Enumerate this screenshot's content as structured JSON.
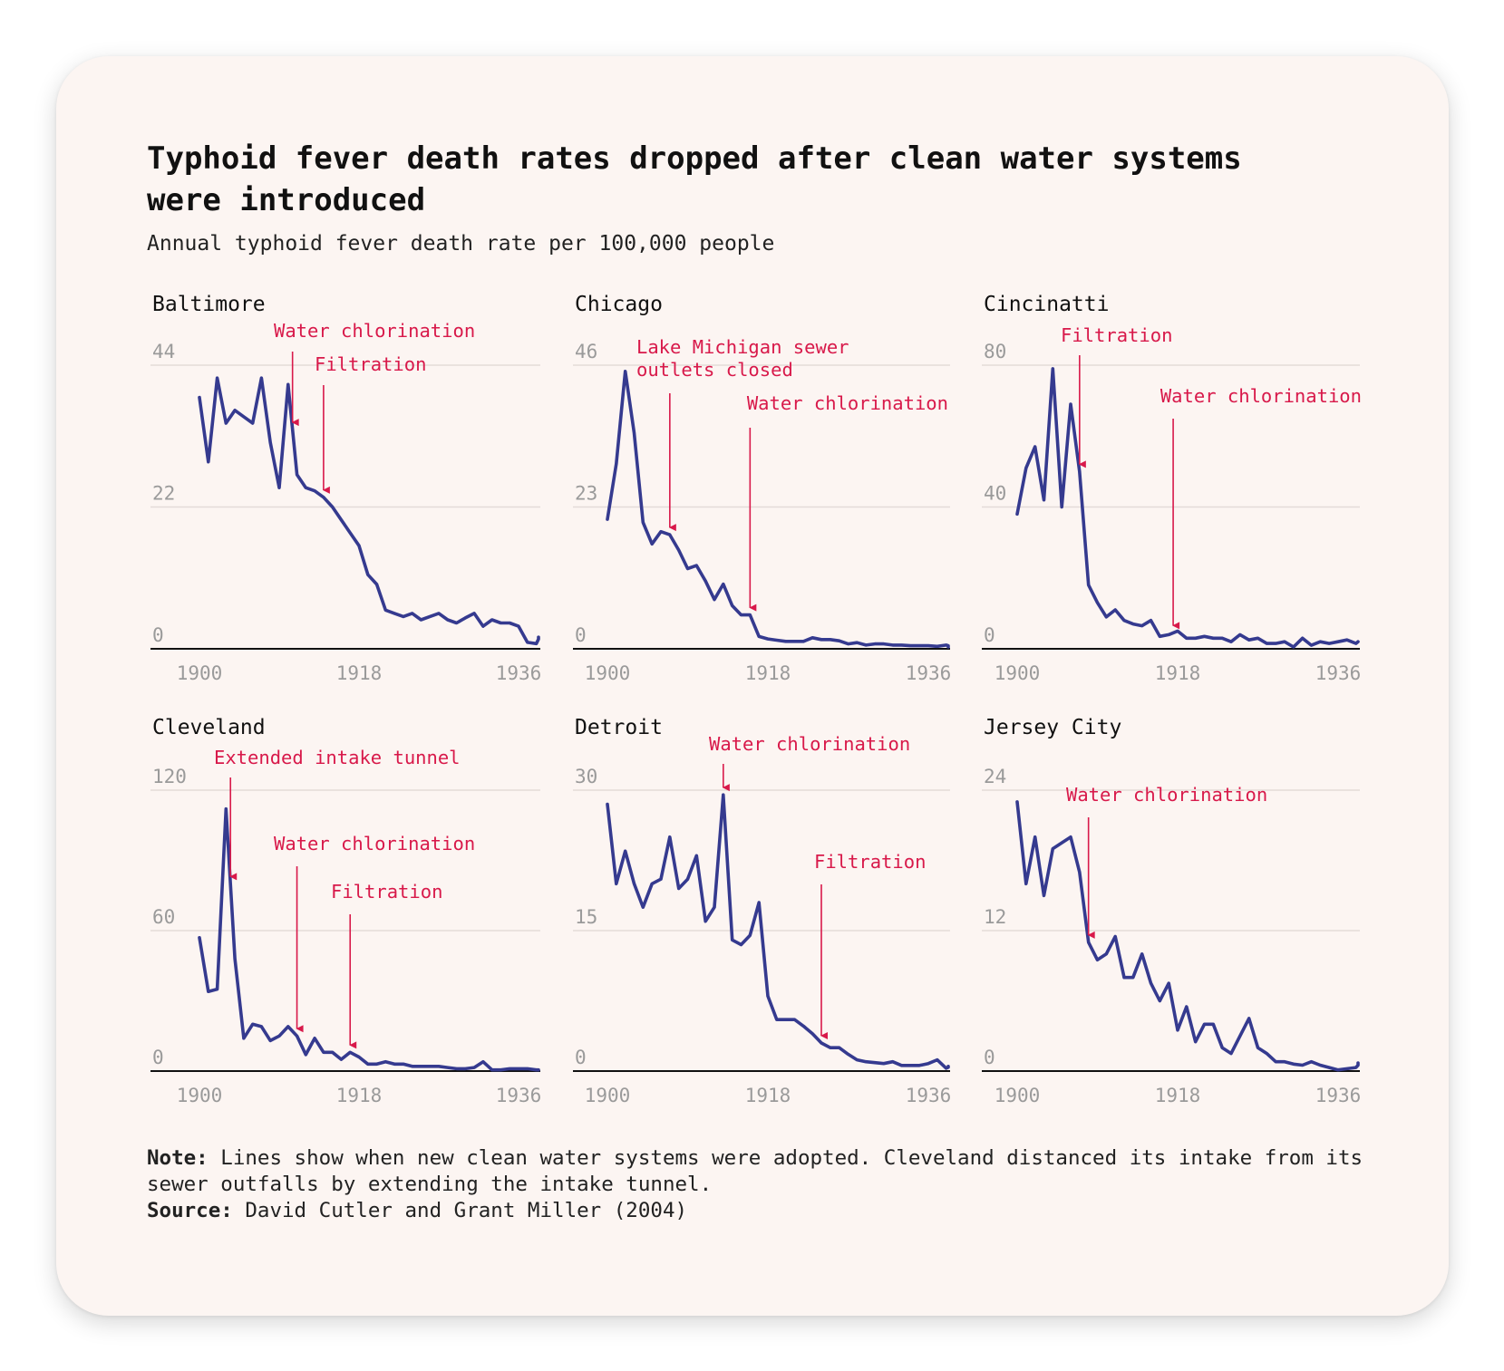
{
  "title": "Typhoid fever death rates dropped after clean water systems were introduced",
  "subtitle": "Annual typhoid fever death rate per 100,000 people",
  "note_label": "Note:",
  "note_text": "Lines show when new clean water systems were adopted. Cleveland distanced its intake from its sewer outfalls by extending the intake tunnel.",
  "source_label": "Source:",
  "source_text": "David Cutler and Grant Miller (2004)",
  "colors": {
    "line": "#353a8f",
    "annotation": "#d8194a",
    "grid": "#e3dbd8",
    "axis": "#111111",
    "tick": "#9a9a9a",
    "background": "#fcf5f2"
  },
  "chart_data": [
    {
      "type": "line",
      "title": "Baltimore",
      "x_ticks": [
        1900,
        1918,
        1936
      ],
      "xlim": [
        1900,
        1936
      ],
      "y_ticks": [
        0,
        22,
        44
      ],
      "ylim": [
        0,
        44
      ],
      "x": [
        1900,
        1901,
        1902,
        1903,
        1904,
        1905,
        1906,
        1907,
        1908,
        1909,
        1910,
        1911,
        1912,
        1913,
        1914,
        1915,
        1916,
        1917,
        1918,
        1919,
        1920,
        1921,
        1922,
        1923,
        1924,
        1925,
        1926,
        1927,
        1928,
        1929,
        1930,
        1931,
        1932,
        1933,
        1934,
        1935,
        1936,
        1937,
        1938,
        1939,
        1940
      ],
      "values": [
        39,
        29,
        42,
        35,
        37,
        36,
        35,
        42,
        32,
        25,
        41,
        27,
        25,
        24.5,
        23.5,
        22,
        20,
        18,
        16,
        11.5,
        10,
        6,
        5.5,
        5,
        5.5,
        4.5,
        5,
        5.5,
        4.5,
        4,
        4.8,
        5.5,
        3.5,
        4.5,
        4,
        4,
        3.5,
        1,
        0.8,
        1.5,
        1.8
      ],
      "annotations": [
        {
          "label": "Water chlorination",
          "year": 1910.5
        },
        {
          "label": "Filtration",
          "year": 1914
        }
      ]
    },
    {
      "type": "line",
      "title": "Chicago",
      "x_ticks": [
        1900,
        1918,
        1936
      ],
      "xlim": [
        1900,
        1936
      ],
      "y_ticks": [
        0,
        23,
        46
      ],
      "ylim": [
        0,
        46
      ],
      "x": [
        1900,
        1901,
        1902,
        1903,
        1904,
        1905,
        1906,
        1907,
        1908,
        1909,
        1910,
        1911,
        1912,
        1913,
        1914,
        1915,
        1916,
        1917,
        1918,
        1919,
        1920,
        1921,
        1922,
        1923,
        1924,
        1925,
        1926,
        1927,
        1928,
        1929,
        1930,
        1931,
        1932,
        1933,
        1934,
        1935,
        1936,
        1937,
        1938,
        1939,
        1940
      ],
      "values": [
        21,
        30,
        45,
        35,
        20.5,
        17,
        19,
        18.5,
        16,
        13,
        13.5,
        11,
        8,
        10.5,
        7,
        5.5,
        5.5,
        2,
        1.6,
        1.4,
        1.2,
        1.2,
        1.2,
        1.8,
        1.5,
        1.5,
        1.3,
        0.8,
        1,
        0.6,
        0.8,
        0.8,
        0.6,
        0.6,
        0.5,
        0.5,
        0.5,
        0.4,
        0.6,
        0.5,
        0.3
      ],
      "annotations": [
        {
          "label": "Lake Michigan sewer outlets closed",
          "year": 1907
        },
        {
          "label": "Water chlorination",
          "year": 1916
        }
      ]
    },
    {
      "type": "line",
      "title": "Cincinatti",
      "x_ticks": [
        1900,
        1918,
        1936
      ],
      "xlim": [
        1900,
        1936
      ],
      "y_ticks": [
        0,
        40,
        80
      ],
      "ylim": [
        0,
        80
      ],
      "x": [
        1900,
        1901,
        1902,
        1903,
        1904,
        1905,
        1906,
        1907,
        1908,
        1909,
        1910,
        1911,
        1912,
        1913,
        1914,
        1915,
        1916,
        1917,
        1918,
        1919,
        1920,
        1921,
        1922,
        1923,
        1924,
        1925,
        1926,
        1927,
        1928,
        1929,
        1930,
        1931,
        1932,
        1933,
        1934,
        1935,
        1936,
        1937,
        1938,
        1939,
        1940
      ],
      "values": [
        38,
        51,
        57,
        42,
        79,
        40,
        69,
        50,
        18,
        13,
        9,
        11,
        8,
        7,
        6.5,
        8,
        3.5,
        4,
        5,
        3,
        3,
        3.5,
        3,
        3,
        2,
        4,
        2.5,
        3,
        1.5,
        1.5,
        2,
        0.5,
        3,
        1,
        2,
        1.5,
        2,
        2.5,
        1.5,
        2,
        2
      ],
      "annotations": [
        {
          "label": "Filtration",
          "year": 1907
        },
        {
          "label": "Water chlorination",
          "year": 1917.5
        }
      ]
    },
    {
      "type": "line",
      "title": "Cleveland",
      "x_ticks": [
        1900,
        1918,
        1936
      ],
      "xlim": [
        1900,
        1936
      ],
      "y_ticks": [
        0,
        60,
        120
      ],
      "ylim": [
        0,
        120
      ],
      "x": [
        1900,
        1901,
        1902,
        1903,
        1904,
        1905,
        1906,
        1907,
        1908,
        1909,
        1910,
        1911,
        1912,
        1913,
        1914,
        1915,
        1916,
        1917,
        1918,
        1919,
        1920,
        1921,
        1922,
        1923,
        1924,
        1925,
        1926,
        1927,
        1928,
        1929,
        1930,
        1931,
        1932,
        1933,
        1934,
        1935,
        1936,
        1937,
        1938,
        1939,
        1940
      ],
      "values": [
        57,
        34,
        35,
        112,
        48,
        14,
        20,
        19,
        13,
        15,
        19,
        15,
        7,
        14,
        8,
        8,
        5,
        8,
        6,
        3,
        3,
        4,
        3,
        3,
        2,
        2,
        2,
        2,
        1.5,
        1,
        1,
        1.5,
        4,
        0.5,
        0.5,
        1,
        1,
        1,
        0.5,
        0.5,
        0.5
      ],
      "annotations": [
        {
          "label": "Extended intake tunnel",
          "year": 1903.5
        },
        {
          "label": "Water chlorination",
          "year": 1911
        },
        {
          "label": "Filtration",
          "year": 1917
        }
      ]
    },
    {
      "type": "line",
      "title": "Detroit",
      "x_ticks": [
        1900,
        1918,
        1936
      ],
      "xlim": [
        1900,
        1936
      ],
      "y_ticks": [
        0,
        15,
        30
      ],
      "ylim": [
        0,
        30
      ],
      "x": [
        1900,
        1901,
        1902,
        1903,
        1904,
        1905,
        1906,
        1907,
        1908,
        1909,
        1910,
        1911,
        1912,
        1913,
        1914,
        1915,
        1916,
        1917,
        1918,
        1919,
        1920,
        1921,
        1922,
        1923,
        1924,
        1925,
        1926,
        1927,
        1928,
        1929,
        1930,
        1931,
        1932,
        1933,
        1934,
        1935,
        1936,
        1937,
        1938,
        1939,
        1940
      ],
      "values": [
        28.5,
        20,
        23.5,
        20,
        17.5,
        20,
        20.5,
        25,
        19.5,
        20.5,
        23,
        16,
        17.5,
        29.5,
        14,
        13.5,
        14.5,
        18,
        8,
        5.5,
        5.5,
        5.5,
        4.8,
        4,
        3,
        2.5,
        2.5,
        1.8,
        1.2,
        1,
        0.9,
        0.8,
        1,
        0.6,
        0.6,
        0.6,
        0.8,
        1.2,
        0.3,
        0.4,
        0.5
      ],
      "annotations": [
        {
          "label": "Water chlorination",
          "year": 1913
        },
        {
          "label": "Filtration",
          "year": 1924
        }
      ]
    },
    {
      "type": "line",
      "title": "Jersey City",
      "x_ticks": [
        1900,
        1918,
        1936
      ],
      "xlim": [
        1900,
        1936
      ],
      "y_ticks": [
        0,
        12,
        24
      ],
      "ylim": [
        0,
        24
      ],
      "x": [
        1900,
        1901,
        1902,
        1903,
        1904,
        1905,
        1906,
        1907,
        1908,
        1909,
        1910,
        1911,
        1912,
        1913,
        1914,
        1915,
        1916,
        1917,
        1918,
        1919,
        1920,
        1921,
        1922,
        1923,
        1924,
        1925,
        1926,
        1927,
        1928,
        1929,
        1930,
        1931,
        1932,
        1933,
        1934,
        1935,
        1936,
        1937,
        1938,
        1939,
        1940
      ],
      "values": [
        23,
        16,
        20,
        15,
        19,
        19.5,
        20,
        17,
        11,
        9.5,
        10,
        11.5,
        8,
        8,
        10,
        7.5,
        6,
        7.5,
        3.5,
        5.5,
        2.5,
        4,
        4,
        2,
        1.5,
        3,
        4.5,
        2,
        1.5,
        0.8,
        0.8,
        0.6,
        0.5,
        0.8,
        0.5,
        0.3,
        0.1,
        0.2,
        0.3,
        0.5,
        0.7
      ],
      "annotations": [
        {
          "label": "Water chlorination",
          "year": 1908
        }
      ]
    }
  ]
}
